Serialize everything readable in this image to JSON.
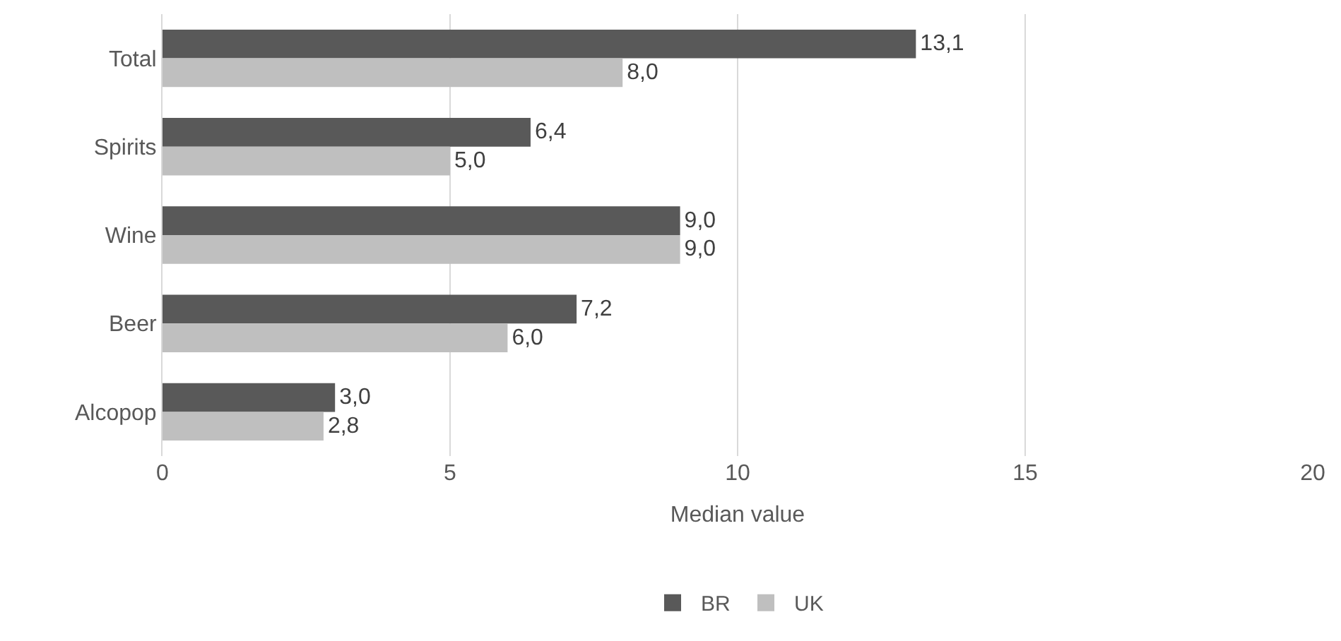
{
  "chart_data": {
    "type": "bar",
    "orientation": "horizontal",
    "categories": [
      "Total",
      "Spirits",
      "Wine",
      "Beer",
      "Alcopop"
    ],
    "series": [
      {
        "name": "BR",
        "color": "#595959",
        "values": [
          13.1,
          6.4,
          9.0,
          7.2,
          3.0
        ],
        "value_labels": [
          "13,1",
          "6,4",
          "9,0",
          "7,2",
          "3,0"
        ]
      },
      {
        "name": "UK",
        "color": "#bfbfbf",
        "values": [
          8.0,
          5.0,
          9.0,
          6.0,
          2.8
        ],
        "value_labels": [
          "8,0",
          "5,0",
          "9,0",
          "6,0",
          "2,8"
        ]
      }
    ],
    "xlabel": "Median value",
    "xlim": [
      0,
      20
    ],
    "xticks": [
      0,
      5,
      10,
      15,
      20
    ],
    "grid": "x",
    "legend": "bottom"
  }
}
